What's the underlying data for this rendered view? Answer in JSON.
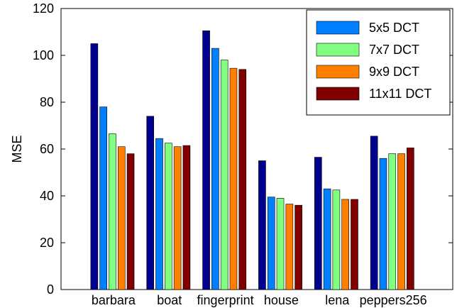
{
  "chart_data": {
    "type": "bar",
    "title": "",
    "xlabel": "",
    "ylabel": "MSE",
    "ylim": [
      0,
      120
    ],
    "yticks": [
      0,
      20,
      40,
      60,
      80,
      100,
      120
    ],
    "grid": false,
    "legend_position": "top-right",
    "categories": [
      "barbara",
      "boat",
      "fingerprint",
      "house",
      "lena",
      "peppers256"
    ],
    "series": [
      {
        "name": "",
        "color": "#00008f",
        "values": [
          105,
          74,
          110.5,
          55,
          56.5,
          65.5
        ]
      },
      {
        "name": "5x5 DCT",
        "color": "#0080ff",
        "values": [
          78,
          64.5,
          103,
          39.5,
          43,
          56
        ]
      },
      {
        "name": "7x7 DCT",
        "color": "#80ff80",
        "values": [
          66.5,
          62.5,
          98,
          39,
          42.5,
          58
        ]
      },
      {
        "name": "9x9 DCT",
        "color": "#ff8000",
        "values": [
          61,
          61,
          94.5,
          36.5,
          38.5,
          58
        ]
      },
      {
        "name": "11x11 DCT",
        "color": "#800000",
        "values": [
          58,
          61.5,
          94,
          36,
          38.5,
          60.5
        ]
      }
    ]
  }
}
